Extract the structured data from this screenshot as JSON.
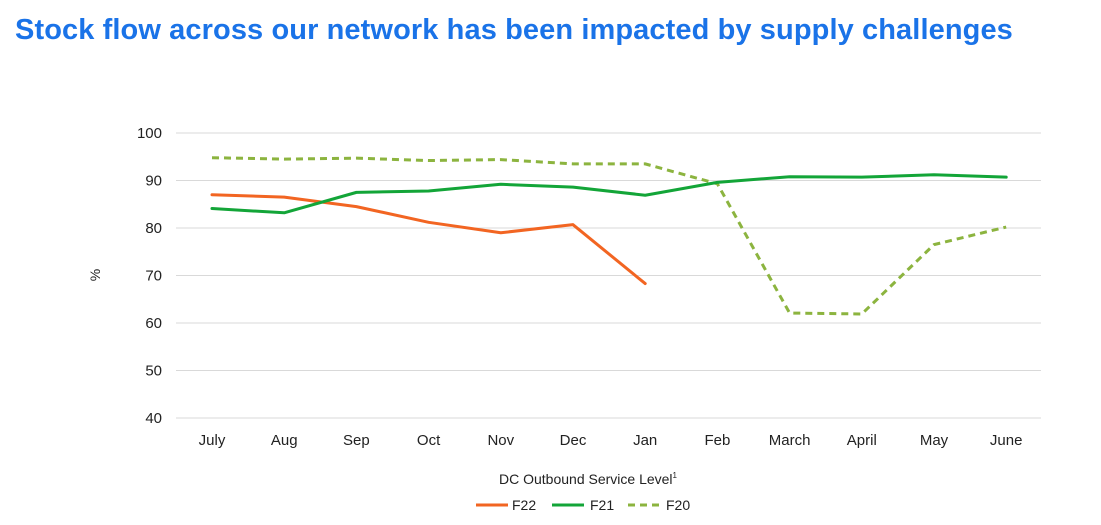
{
  "colors": {
    "title": "#1a73e8",
    "gridline": "#d9d9d9"
  },
  "chart_data": {
    "type": "line",
    "title": "Stock flow across our network has been impacted by supply challenges",
    "xlabel": "DC Outbound Service Level",
    "xlabel_superscript": "1",
    "ylabel": "%",
    "ylim": [
      40,
      100
    ],
    "yticks": [
      40,
      50,
      60,
      70,
      80,
      90,
      100
    ],
    "grid": true,
    "legend_position": "bottom-center",
    "categories": [
      "July",
      "Aug",
      "Sep",
      "Oct",
      "Nov",
      "Dec",
      "Jan",
      "Feb",
      "March",
      "April",
      "May",
      "June"
    ],
    "series": [
      {
        "name": "F22",
        "color": "#f26522",
        "dashed": false,
        "values": [
          87,
          86.5,
          84.5,
          81.2,
          79,
          80.7,
          68.3,
          null,
          null,
          null,
          null,
          null
        ]
      },
      {
        "name": "F21",
        "color": "#13a538",
        "dashed": false,
        "values": [
          84.1,
          83.2,
          87.5,
          87.8,
          89.2,
          88.6,
          86.9,
          89.6,
          90.8,
          90.7,
          91.2,
          90.7
        ]
      },
      {
        "name": "F20",
        "color": "#8cb43f",
        "dashed": true,
        "values": [
          94.8,
          94.5,
          94.7,
          94.2,
          94.4,
          93.5,
          93.5,
          89.3,
          62.1,
          61.9,
          76.5,
          80.2
        ]
      }
    ]
  }
}
